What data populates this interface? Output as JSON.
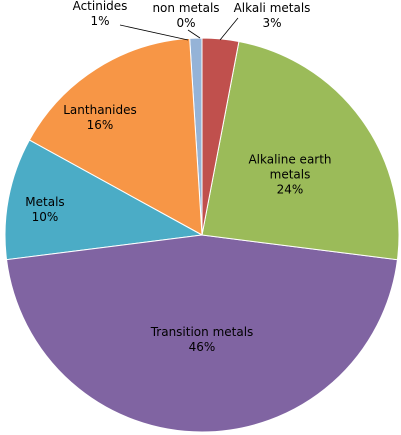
{
  "chart_data": {
    "type": "pie",
    "categories": [
      "non metals",
      "Alkali metals",
      "Alkaline earth metals",
      "Transition metals",
      "Metals",
      "Lanthanides",
      "Actinides"
    ],
    "values": [
      0,
      3,
      24,
      46,
      10,
      16,
      1
    ],
    "value_labels": [
      "0%",
      "3%",
      "24%",
      "46%",
      "10%",
      "16%",
      "1%"
    ],
    "colors": [
      "#4f81bd",
      "#c0504d",
      "#9bbb59",
      "#8064a2",
      "#4bacc6",
      "#f79646",
      "#95b3d7"
    ]
  }
}
